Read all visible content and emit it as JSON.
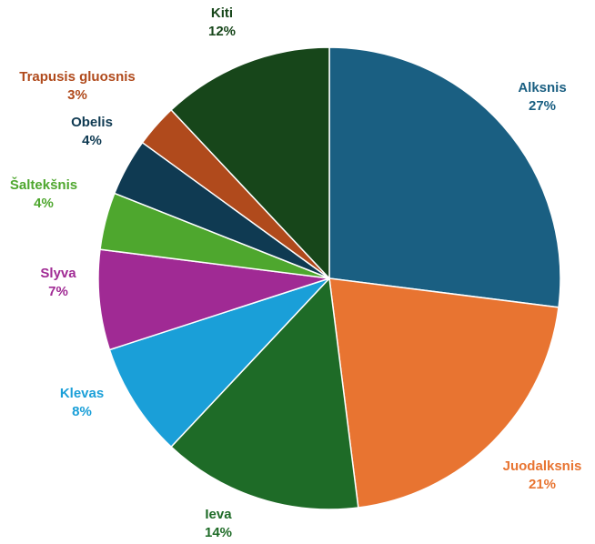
{
  "chart_data": {
    "type": "pie",
    "title": "",
    "start": "top, clockwise",
    "slices": [
      {
        "label": "Alksnis",
        "value": 27,
        "value_label": "27%",
        "color": "#1a5f82"
      },
      {
        "label": "Juodalksnis",
        "value": 21,
        "value_label": "21%",
        "color": "#e87431"
      },
      {
        "label": "Ieva",
        "value": 14,
        "value_label": "14%",
        "color": "#1e6b27"
      },
      {
        "label": "Klevas",
        "value": 8,
        "value_label": "8%",
        "color": "#1a9fd8"
      },
      {
        "label": "Slyva",
        "value": 7,
        "value_label": "7%",
        "color": "#a02a94"
      },
      {
        "label": "Šaltekšnis",
        "value": 4,
        "value_label": "4%",
        "color": "#4ea72e"
      },
      {
        "label": "Obelis",
        "value": 4,
        "value_label": "4%",
        "color": "#0f3a52"
      },
      {
        "label": "Trapusis gluosnis",
        "value": 3,
        "value_label": "3%",
        "color": "#b04a1c"
      },
      {
        "label": "Kiti",
        "value": 12,
        "value_label": "12%",
        "color": "#17461a"
      }
    ]
  }
}
